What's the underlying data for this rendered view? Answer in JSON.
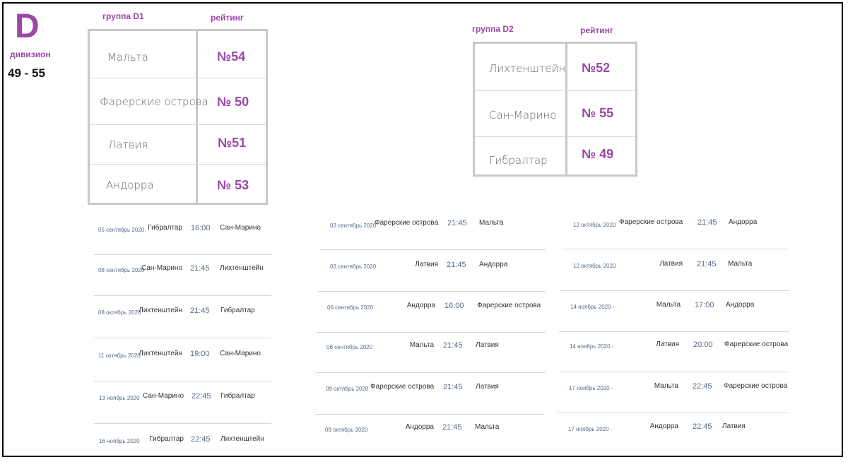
{
  "division": {
    "letter": "D",
    "label": "дивизион",
    "range": "49 - 55"
  },
  "group_d1": {
    "title": "группа  D1",
    "rating_label": "рейтинг",
    "rows": [
      {
        "country": "Мальта",
        "rank": "№54"
      },
      {
        "country": "Фарерские острова",
        "rank": "№ 50"
      },
      {
        "country": "Латвия",
        "rank": "№51"
      },
      {
        "country": "Андорра",
        "rank": "№ 53"
      }
    ]
  },
  "group_d2": {
    "title": "группа D2",
    "rating_label": "рейтинг",
    "rows": [
      {
        "country": "Лихтенштейн",
        "rank": "№52"
      },
      {
        "country": "Сан-Марино",
        "rank": "№ 55"
      },
      {
        "country": "Гибралтар",
        "rank": "№ 49"
      }
    ]
  },
  "schedule": {
    "column_1": [
      {
        "date": "05 сентябрь 2020",
        "home": "Гибралтар",
        "time": "16:00",
        "away": "Сан-Марино"
      },
      {
        "date": "08 сентябрь 2020",
        "home": "Сан-Марино",
        "time": "21:45",
        "away": "Лихтенштейн"
      },
      {
        "date": "08 октябрь 2020",
        "home": "Лихтенштейн",
        "time": "21:45",
        "away": "Гибралтар"
      },
      {
        "date": "11 октябрь 2020",
        "home": "Лихтенштейн",
        "time": "19:00",
        "away": "Сан-Марино"
      },
      {
        "date": "13 ноябрь 2020",
        "home": "Сан-Марино",
        "time": "22:45",
        "away": "Гибралтар"
      },
      {
        "date": "16 ноябрь 2020",
        "home": "Гибралтар",
        "time": "22:45",
        "away": "Лихтенштейн"
      }
    ],
    "column_2": [
      {
        "date": "03 сентябрь 2020",
        "home": "Фарерские острова",
        "time": "21:45",
        "away": "Мальта"
      },
      {
        "date": "03 сентябрь 2020",
        "home": "Латвия",
        "time": "21:45",
        "away": "Андорра"
      },
      {
        "date": "06 сентябрь 2020",
        "home": "Андорра",
        "time": "16:00",
        "away": "Фарерские острова"
      },
      {
        "date": "06 сентябрь 2020",
        "home": "Мальта",
        "time": "21:45",
        "away": "Латвия"
      },
      {
        "date": "09 октябрь 2020",
        "home": "Фарерские острова",
        "time": "21:45",
        "away": "Латвия"
      },
      {
        "date": "09 октябрь 2020",
        "home": "Андорра",
        "time": "21:45",
        "away": "Мальта"
      }
    ],
    "column_3": [
      {
        "date": "12 октябрь 2020",
        "home": "Фарерские острова",
        "time": "21:45",
        "away": "Андорра"
      },
      {
        "date": "12 октябрь 2020",
        "home": "Латвия",
        "time": "21:45",
        "away": "Мальта"
      },
      {
        "date": "14 ноябрь 2020 -",
        "home": "Мальта",
        "time": "17:00",
        "away": "Андорра"
      },
      {
        "date": "14 ноябрь 2020 -",
        "home": "Латвия",
        "time": "20:00",
        "away": "Фарерские острова"
      },
      {
        "date": "17 ноябрь 2020 -",
        "home": "Мальта",
        "time": "22:45",
        "away": "Фарерские острова"
      },
      {
        "date": "17 ноябрь 2020 -",
        "home": "Андорра",
        "time": "22:45",
        "away": "Латвия"
      }
    ]
  }
}
